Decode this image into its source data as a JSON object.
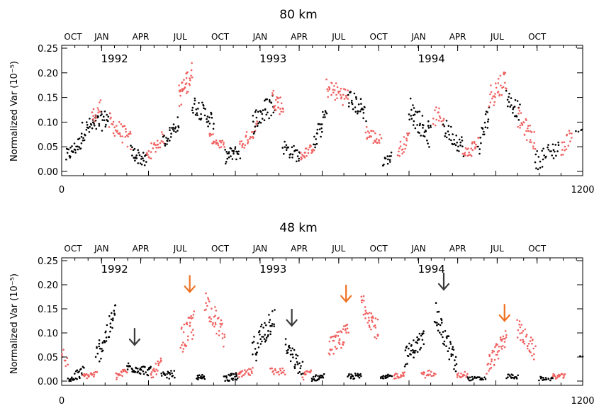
{
  "chart_data": [
    {
      "type": "scatter",
      "title": "80 km",
      "ylabel": "Normalized Var (10⁻⁵)",
      "xlim": [
        0,
        1200
      ],
      "ylim": [
        0,
        0.25
      ],
      "x_ticks": [
        "0",
        "1200"
      ],
      "y_ticks": [
        "0.00",
        "0.05",
        "0.10",
        "0.15",
        "0.20",
        "0.25"
      ],
      "top_months": [
        "OCT",
        "JAN",
        "APR",
        "JUL",
        "OCT",
        "JAN",
        "APR",
        "JUL",
        "OCT",
        "JAN",
        "APR",
        "JUL",
        "OCT"
      ],
      "top_month_days": [
        0,
        92,
        182,
        273,
        365,
        457,
        547,
        638,
        730,
        822,
        912,
        1003,
        1095
      ],
      "year_labels": [
        {
          "text": "1992",
          "x": 120
        },
        {
          "text": "1993",
          "x": 485
        },
        {
          "text": "1994",
          "x": 850
        }
      ],
      "colors": {
        "black": "#000000",
        "red": "#f06060"
      },
      "segments": [
        {
          "color": "black",
          "x0": 10,
          "x1": 45,
          "y0": 0.03,
          "y1": 0.06,
          "n": 26,
          "spread": 0.015
        },
        {
          "color": "black",
          "x0": 45,
          "x1": 110,
          "y0": 0.08,
          "y1": 0.11,
          "n": 48,
          "spread": 0.02
        },
        {
          "color": "red",
          "x0": 70,
          "x1": 90,
          "y0": 0.11,
          "y1": 0.13,
          "n": 14,
          "spread": 0.015
        },
        {
          "color": "red",
          "x0": 110,
          "x1": 160,
          "y0": 0.1,
          "y1": 0.06,
          "n": 36,
          "spread": 0.02
        },
        {
          "color": "black",
          "x0": 160,
          "x1": 195,
          "y0": 0.04,
          "y1": 0.02,
          "n": 26,
          "spread": 0.015
        },
        {
          "color": "red",
          "x0": 195,
          "x1": 235,
          "y0": 0.03,
          "y1": 0.07,
          "n": 26,
          "spread": 0.015
        },
        {
          "color": "black",
          "x0": 235,
          "x1": 270,
          "y0": 0.06,
          "y1": 0.1,
          "n": 26,
          "spread": 0.015
        },
        {
          "color": "red",
          "x0": 270,
          "x1": 300,
          "y0": 0.15,
          "y1": 0.2,
          "n": 34,
          "spread": 0.025
        },
        {
          "color": "black",
          "x0": 300,
          "x1": 350,
          "y0": 0.14,
          "y1": 0.1,
          "n": 36,
          "spread": 0.02
        },
        {
          "color": "red",
          "x0": 340,
          "x1": 375,
          "y0": 0.07,
          "y1": 0.05,
          "n": 24,
          "spread": 0.01
        },
        {
          "color": "black",
          "x0": 375,
          "x1": 410,
          "y0": 0.03,
          "y1": 0.04,
          "n": 26,
          "spread": 0.015
        },
        {
          "color": "red",
          "x0": 410,
          "x1": 450,
          "y0": 0.05,
          "y1": 0.09,
          "n": 26,
          "spread": 0.015
        },
        {
          "color": "black",
          "x0": 440,
          "x1": 490,
          "y0": 0.1,
          "y1": 0.14,
          "n": 36,
          "spread": 0.025
        },
        {
          "color": "red",
          "x0": 485,
          "x1": 510,
          "y0": 0.15,
          "y1": 0.13,
          "n": 24,
          "spread": 0.02
        },
        {
          "color": "black",
          "x0": 510,
          "x1": 550,
          "y0": 0.05,
          "y1": 0.03,
          "n": 26,
          "spread": 0.015
        },
        {
          "color": "red",
          "x0": 550,
          "x1": 580,
          "y0": 0.03,
          "y1": 0.05,
          "n": 24,
          "spread": 0.01
        },
        {
          "color": "black",
          "x0": 580,
          "x1": 610,
          "y0": 0.05,
          "y1": 0.12,
          "n": 24,
          "spread": 0.02
        },
        {
          "color": "red",
          "x0": 610,
          "x1": 660,
          "y0": 0.17,
          "y1": 0.15,
          "n": 36,
          "spread": 0.02
        },
        {
          "color": "black",
          "x0": 660,
          "x1": 700,
          "y0": 0.15,
          "y1": 0.12,
          "n": 30,
          "spread": 0.02
        },
        {
          "color": "red",
          "x0": 700,
          "x1": 735,
          "y0": 0.08,
          "y1": 0.06,
          "n": 26,
          "spread": 0.015
        },
        {
          "color": "black",
          "x0": 740,
          "x1": 760,
          "y0": 0.02,
          "y1": 0.03,
          "n": 14,
          "spread": 0.01
        },
        {
          "color": "red",
          "x0": 775,
          "x1": 800,
          "y0": 0.04,
          "y1": 0.07,
          "n": 20,
          "spread": 0.015
        },
        {
          "color": "black",
          "x0": 800,
          "x1": 850,
          "y0": 0.13,
          "y1": 0.07,
          "n": 40,
          "spread": 0.025
        },
        {
          "color": "red",
          "x0": 855,
          "x1": 880,
          "y0": 0.11,
          "y1": 0.11,
          "n": 16,
          "spread": 0.02
        },
        {
          "color": "black",
          "x0": 880,
          "x1": 925,
          "y0": 0.09,
          "y1": 0.05,
          "n": 30,
          "spread": 0.02
        },
        {
          "color": "red",
          "x0": 925,
          "x1": 960,
          "y0": 0.03,
          "y1": 0.06,
          "n": 24,
          "spread": 0.015
        },
        {
          "color": "black",
          "x0": 960,
          "x1": 985,
          "y0": 0.05,
          "y1": 0.12,
          "n": 20,
          "spread": 0.025
        },
        {
          "color": "red",
          "x0": 985,
          "x1": 1025,
          "y0": 0.15,
          "y1": 0.19,
          "n": 32,
          "spread": 0.025
        },
        {
          "color": "black",
          "x0": 1025,
          "x1": 1055,
          "y0": 0.15,
          "y1": 0.12,
          "n": 22,
          "spread": 0.02
        },
        {
          "color": "red",
          "x0": 1050,
          "x1": 1090,
          "y0": 0.11,
          "y1": 0.06,
          "n": 32,
          "spread": 0.02
        },
        {
          "color": "black",
          "x0": 1090,
          "x1": 1145,
          "y0": 0.02,
          "y1": 0.05,
          "n": 30,
          "spread": 0.02
        },
        {
          "color": "red",
          "x0": 1150,
          "x1": 1175,
          "y0": 0.04,
          "y1": 0.08,
          "n": 16,
          "spread": 0.015
        },
        {
          "color": "black",
          "x0": 1185,
          "x1": 1200,
          "y0": 0.08,
          "y1": 0.08,
          "n": 4,
          "spread": 0.005
        }
      ]
    },
    {
      "type": "scatter",
      "title": "48 km",
      "ylabel": "Normalized Var (10⁻⁵)",
      "xlim": [
        0,
        1200
      ],
      "ylim": [
        0,
        0.25
      ],
      "x_ticks": [
        "0",
        "1200"
      ],
      "y_ticks": [
        "0.00",
        "0.05",
        "0.10",
        "0.15",
        "0.20",
        "0.25"
      ],
      "top_months": [
        "OCT",
        "JAN",
        "APR",
        "JUL",
        "OCT",
        "JAN",
        "APR",
        "JUL",
        "OCT",
        "JAN",
        "APR",
        "JUL",
        "OCT"
      ],
      "top_month_days": [
        0,
        92,
        182,
        273,
        365,
        457,
        547,
        638,
        730,
        822,
        912,
        1003,
        1095
      ],
      "year_labels": [
        {
          "text": "1992",
          "x": 120
        },
        {
          "text": "1993",
          "x": 485
        },
        {
          "text": "1994",
          "x": 850
        }
      ],
      "colors": {
        "black": "#000000",
        "red": "#f06060",
        "arrow_orange": "#f07020",
        "arrow_dark": "#3a3a3a"
      },
      "arrows": [
        {
          "color": "arrow_dark",
          "x": 168,
          "y_tip": 0.075,
          "y_tail": 0.11
        },
        {
          "color": "arrow_orange",
          "x": 295,
          "y_tip": 0.185,
          "y_tail": 0.22
        },
        {
          "color": "arrow_dark",
          "x": 530,
          "y_tip": 0.115,
          "y_tail": 0.15
        },
        {
          "color": "arrow_orange",
          "x": 655,
          "y_tip": 0.165,
          "y_tail": 0.2
        },
        {
          "color": "arrow_dark",
          "x": 880,
          "y_tip": 0.19,
          "y_tail": 0.225
        },
        {
          "color": "arrow_orange",
          "x": 1020,
          "y_tip": 0.125,
          "y_tail": 0.16
        }
      ],
      "segments": [
        {
          "color": "red",
          "x0": 0,
          "x1": 15,
          "y0": 0.07,
          "y1": 0.03,
          "n": 8,
          "spread": 0.015
        },
        {
          "color": "black",
          "x0": 15,
          "x1": 50,
          "y0": 0.0,
          "y1": 0.02,
          "n": 26,
          "spread": 0.012
        },
        {
          "color": "red",
          "x0": 50,
          "x1": 80,
          "y0": 0.01,
          "y1": 0.015,
          "n": 22,
          "spread": 0.006
        },
        {
          "color": "black",
          "x0": 80,
          "x1": 125,
          "y0": 0.05,
          "y1": 0.14,
          "n": 40,
          "spread": 0.025
        },
        {
          "color": "red",
          "x0": 125,
          "x1": 150,
          "y0": 0.01,
          "y1": 0.02,
          "n": 18,
          "spread": 0.008
        },
        {
          "color": "black",
          "x0": 150,
          "x1": 205,
          "y0": 0.03,
          "y1": 0.02,
          "n": 42,
          "spread": 0.01
        },
        {
          "color": "red",
          "x0": 205,
          "x1": 230,
          "y0": 0.01,
          "y1": 0.04,
          "n": 20,
          "spread": 0.012
        },
        {
          "color": "black",
          "x0": 230,
          "x1": 260,
          "y0": 0.01,
          "y1": 0.015,
          "n": 20,
          "spread": 0.008
        },
        {
          "color": "red",
          "x0": 275,
          "x1": 305,
          "y0": 0.08,
          "y1": 0.12,
          "n": 34,
          "spread": 0.03
        },
        {
          "color": "black",
          "x0": 310,
          "x1": 330,
          "y0": 0.005,
          "y1": 0.01,
          "n": 16,
          "spread": 0.006
        },
        {
          "color": "red",
          "x0": 330,
          "x1": 375,
          "y0": 0.17,
          "y1": 0.09,
          "n": 38,
          "spread": 0.025
        },
        {
          "color": "black",
          "x0": 375,
          "x1": 405,
          "y0": 0.005,
          "y1": 0.01,
          "n": 26,
          "spread": 0.008
        },
        {
          "color": "red",
          "x0": 405,
          "x1": 440,
          "y0": 0.01,
          "y1": 0.02,
          "n": 24,
          "spread": 0.008
        },
        {
          "color": "black",
          "x0": 440,
          "x1": 490,
          "y0": 0.06,
          "y1": 0.14,
          "n": 46,
          "spread": 0.03
        },
        {
          "color": "red",
          "x0": 480,
          "x1": 515,
          "y0": 0.02,
          "y1": 0.02,
          "n": 20,
          "spread": 0.008
        },
        {
          "color": "black",
          "x0": 515,
          "x1": 555,
          "y0": 0.07,
          "y1": 0.02,
          "n": 32,
          "spread": 0.02
        },
        {
          "color": "red",
          "x0": 555,
          "x1": 575,
          "y0": 0.01,
          "y1": 0.02,
          "n": 14,
          "spread": 0.008
        },
        {
          "color": "black",
          "x0": 575,
          "x1": 605,
          "y0": 0.005,
          "y1": 0.01,
          "n": 22,
          "spread": 0.006
        },
        {
          "color": "red",
          "x0": 615,
          "x1": 660,
          "y0": 0.07,
          "y1": 0.1,
          "n": 42,
          "spread": 0.02
        },
        {
          "color": "black",
          "x0": 660,
          "x1": 690,
          "y0": 0.01,
          "y1": 0.01,
          "n": 22,
          "spread": 0.006
        },
        {
          "color": "red",
          "x0": 690,
          "x1": 730,
          "y0": 0.17,
          "y1": 0.1,
          "n": 36,
          "spread": 0.025
        },
        {
          "color": "black",
          "x0": 735,
          "x1": 760,
          "y0": 0.005,
          "y1": 0.01,
          "n": 18,
          "spread": 0.005
        },
        {
          "color": "red",
          "x0": 765,
          "x1": 790,
          "y0": 0.01,
          "y1": 0.015,
          "n": 18,
          "spread": 0.006
        },
        {
          "color": "black",
          "x0": 790,
          "x1": 835,
          "y0": 0.05,
          "y1": 0.09,
          "n": 40,
          "spread": 0.02
        },
        {
          "color": "red",
          "x0": 830,
          "x1": 860,
          "y0": 0.01,
          "y1": 0.02,
          "n": 18,
          "spread": 0.008
        },
        {
          "color": "black",
          "x0": 860,
          "x1": 910,
          "y0": 0.14,
          "y1": 0.03,
          "n": 44,
          "spread": 0.025
        },
        {
          "color": "red",
          "x0": 910,
          "x1": 935,
          "y0": 0.01,
          "y1": 0.015,
          "n": 16,
          "spread": 0.006
        },
        {
          "color": "black",
          "x0": 935,
          "x1": 975,
          "y0": 0.005,
          "y1": 0.005,
          "n": 22,
          "spread": 0.004
        },
        {
          "color": "red",
          "x0": 980,
          "x1": 1025,
          "y0": 0.03,
          "y1": 0.09,
          "n": 42,
          "spread": 0.02
        },
        {
          "color": "black",
          "x0": 1025,
          "x1": 1050,
          "y0": 0.01,
          "y1": 0.01,
          "n": 16,
          "spread": 0.005
        },
        {
          "color": "red",
          "x0": 1050,
          "x1": 1090,
          "y0": 0.11,
          "y1": 0.06,
          "n": 36,
          "spread": 0.02
        },
        {
          "color": "black",
          "x0": 1100,
          "x1": 1130,
          "y0": 0.005,
          "y1": 0.005,
          "n": 16,
          "spread": 0.004
        },
        {
          "color": "red",
          "x0": 1130,
          "x1": 1160,
          "y0": 0.01,
          "y1": 0.01,
          "n": 18,
          "spread": 0.005
        },
        {
          "color": "black",
          "x0": 1195,
          "x1": 1200,
          "y0": 0.05,
          "y1": 0.05,
          "n": 2,
          "spread": 0.002
        }
      ]
    }
  ]
}
